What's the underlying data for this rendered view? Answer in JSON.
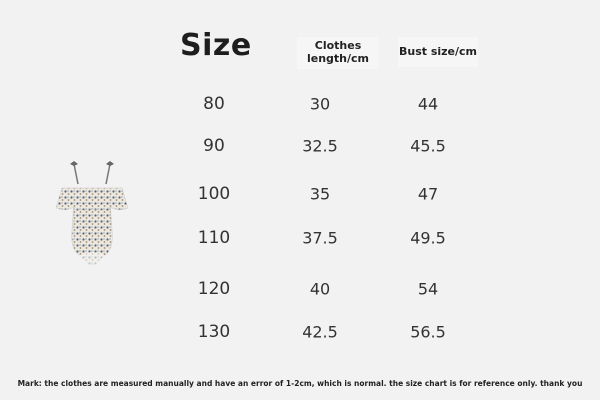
{
  "title": "Size",
  "headers": {
    "length": "Clothes length/cm",
    "length_line1": "Clothes",
    "length_line2": "length/cm",
    "bust": "Bust size/cm"
  },
  "rows": [
    {
      "size": "80",
      "length": "30",
      "bust": "44"
    },
    {
      "size": "90",
      "length": "32.5",
      "bust": "45.5"
    },
    {
      "size": "100",
      "length": "35",
      "bust": "47"
    },
    {
      "size": "110",
      "length": "37.5",
      "bust": "49.5"
    },
    {
      "size": "120",
      "length": "40",
      "bust": "54"
    },
    {
      "size": "130",
      "length": "42.5",
      "bust": "56.5"
    }
  ],
  "note": "Mark: the clothes are measured manually and have an error of 1-2cm, which is normal. the size chart is for reference only. thank you",
  "product_image": "floral-ruffle-swimsuit",
  "colors": {
    "background": "#f2f2f2",
    "text": "#222222"
  }
}
